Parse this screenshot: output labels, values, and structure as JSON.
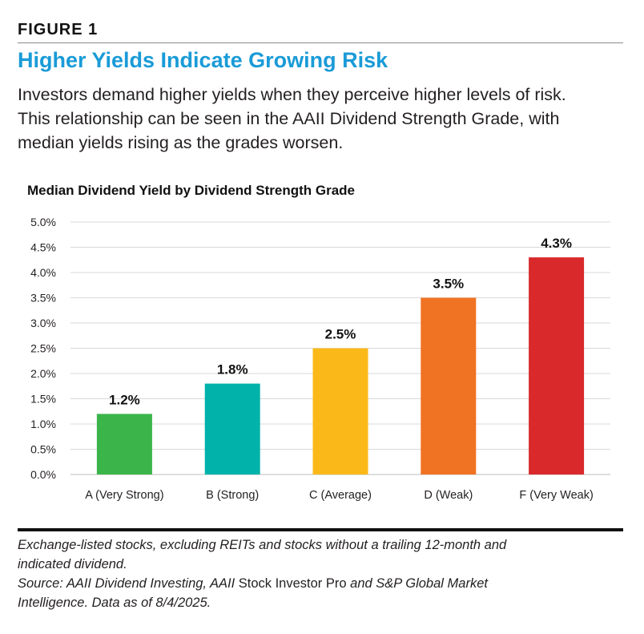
{
  "header": {
    "figure_label": "FIGURE 1",
    "title": "Higher Yields Indicate Growing Risk",
    "intro_lines": [
      "Investors demand higher yields when they perceive higher levels of risk.",
      "This relationship can be seen in the AAII Dividend Strength Grade, with",
      "median yields rising as the grades worsen."
    ],
    "title_color": "#1a9bd7"
  },
  "chart_data": {
    "type": "bar",
    "title": "Median Dividend Yield by Dividend Strength Grade",
    "categories": [
      "A (Very Strong)",
      "B (Strong)",
      "C (Average)",
      "D (Weak)",
      "F (Very Weak)"
    ],
    "values": [
      1.2,
      1.8,
      2.5,
      3.5,
      4.3
    ],
    "data_labels": [
      "1.2%",
      "1.8%",
      "2.5%",
      "3.5%",
      "4.3%"
    ],
    "colors": [
      "#3bb54a",
      "#00b2a9",
      "#fbb919",
      "#f07323",
      "#d9292b"
    ],
    "ylim": [
      0,
      5
    ],
    "yticks": [
      0,
      0.5,
      1,
      1.5,
      2,
      2.5,
      3,
      3.5,
      4,
      4.5,
      5
    ],
    "ytick_labels": [
      "0.0%",
      "0.5%",
      "1.0%",
      "1.5%",
      "2.0%",
      "2.5%",
      "3.0%",
      "3.5%",
      "4.0%",
      "4.5%",
      "5.0%"
    ],
    "xlabel": "",
    "ylabel": "",
    "grid": true,
    "legend": "none"
  },
  "footer": {
    "note_line1": "Exchange-listed stocks, excluding REITs and stocks without a trailing 12-month and",
    "note_line2": "indicated dividend.",
    "source_prefix": "Source: AAII Dividend Investing, AAII ",
    "source_product": "Stock Investor Pro",
    "source_suffix": " and S&P Global Market",
    "source_line2": "Intelligence. Data as of 8/4/2025."
  }
}
